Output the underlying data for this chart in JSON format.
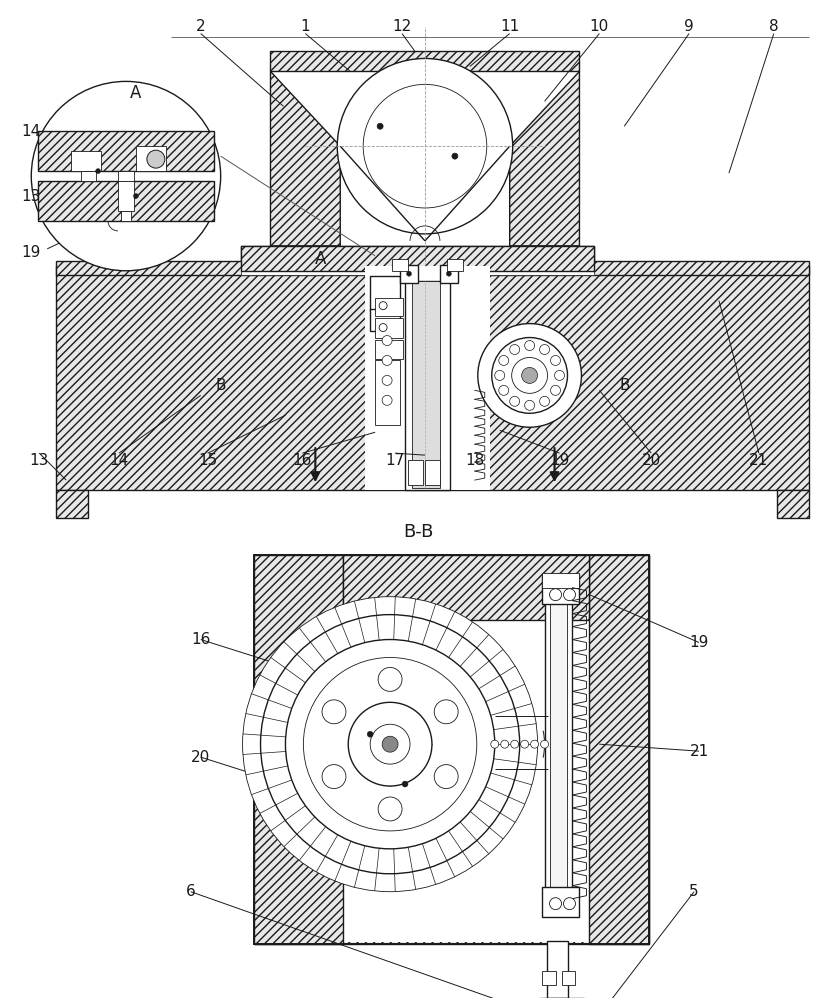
{
  "bg_color": "#ffffff",
  "line_color": "#1a1a1a",
  "fig_width": 8.35,
  "fig_height": 10.0,
  "dpi": 100,
  "top_labels": [
    [
      "2",
      200,
      975
    ],
    [
      "1",
      303,
      975
    ],
    [
      "12",
      400,
      975
    ],
    [
      "11",
      510,
      975
    ],
    [
      "10",
      600,
      975
    ],
    [
      "9",
      690,
      975
    ],
    [
      "8",
      775,
      975
    ]
  ],
  "bottom_main_labels": [
    [
      "13",
      38,
      540
    ],
    [
      "14",
      120,
      540
    ],
    [
      "15",
      207,
      540
    ],
    [
      "16",
      302,
      540
    ],
    [
      "17",
      395,
      540
    ],
    [
      "18",
      475,
      540
    ],
    [
      "19",
      560,
      540
    ],
    [
      "20",
      652,
      540
    ],
    [
      "21",
      760,
      540
    ]
  ],
  "detail_A_labels": [
    [
      "14",
      30,
      870
    ],
    [
      "13",
      30,
      800
    ],
    [
      "19",
      30,
      740
    ]
  ],
  "bb_labels": [
    [
      "16",
      200,
      360
    ],
    [
      "20",
      200,
      240
    ],
    [
      "19",
      700,
      355
    ],
    [
      "21",
      700,
      245
    ],
    [
      "6",
      190,
      105
    ],
    [
      "5",
      695,
      105
    ]
  ]
}
